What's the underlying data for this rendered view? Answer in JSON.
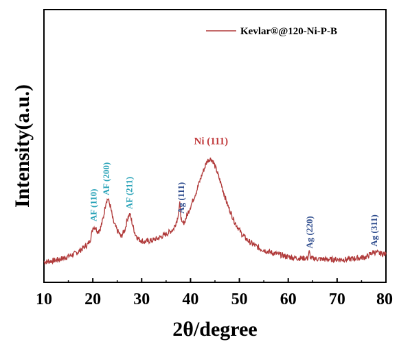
{
  "chart_data": {
    "type": "line",
    "xlabel": "2θ/degree",
    "ylabel": "Intensity(a.u.)",
    "xlim": [
      10,
      80
    ],
    "ylim": [
      0,
      100
    ],
    "xticks": [
      "10",
      "20",
      "30",
      "40",
      "50",
      "60",
      "70",
      "80"
    ],
    "yticks_shown": false,
    "legend_position": "top-right",
    "series": [
      {
        "name": "Kevlar®@120-Ni-P-B",
        "color": "#b03a3a",
        "x": [
          10,
          12,
          14,
          16,
          17,
          18,
          19,
          19.5,
          20.1,
          20.6,
          21,
          21.6,
          22.2,
          22.7,
          23.1,
          23.6,
          24.2,
          25,
          25.8,
          26.6,
          27.2,
          27.6,
          28.1,
          28.7,
          29.4,
          30.5,
          32,
          33.5,
          35,
          36.5,
          37.3,
          37.8,
          38.2,
          38.8,
          40,
          41.2,
          42.4,
          43.4,
          44,
          44.6,
          45.4,
          46.4,
          47.5,
          49,
          50.5,
          52,
          54,
          56,
          58,
          60,
          62,
          64,
          64.3,
          64.6,
          66,
          68,
          70,
          72,
          74,
          76,
          77.5,
          78.5,
          80
        ],
        "y": [
          4,
          4.5,
          5.5,
          7,
          8,
          9.5,
          11,
          13,
          18,
          17.5,
          16,
          17.5,
          22,
          28,
          29,
          26,
          20,
          16.5,
          14,
          17,
          22,
          23,
          19,
          15,
          13,
          12,
          12.5,
          13.5,
          15,
          17,
          21,
          27,
          19,
          20,
          26,
          32,
          39,
          44,
          45,
          44,
          40,
          34,
          27,
          20,
          15,
          12,
          9.5,
          8,
          7,
          6,
          5.5,
          5.5,
          8,
          5.5,
          5.2,
          5,
          5,
          5,
          5.5,
          6,
          8,
          7.5,
          7
        ]
      }
    ],
    "annotations": [
      {
        "text": "AF (110)",
        "x": 20.2,
        "color": "#2aa3b8"
      },
      {
        "text": "AF (200)",
        "x": 22.8,
        "color": "#2aa3b8"
      },
      {
        "text": "AF (211)",
        "x": 27.5,
        "color": "#2aa3b8"
      },
      {
        "text": "Ag (111)",
        "x": 38.1,
        "color": "#2c4a8c"
      },
      {
        "text": "Ni (111)",
        "x": 44.2,
        "color": "#c0393b"
      },
      {
        "text": "Ag (220)",
        "x": 64.4,
        "color": "#2c4a8c"
      },
      {
        "text": "Ag (311)",
        "x": 77.6,
        "color": "#2c4a8c"
      }
    ]
  }
}
